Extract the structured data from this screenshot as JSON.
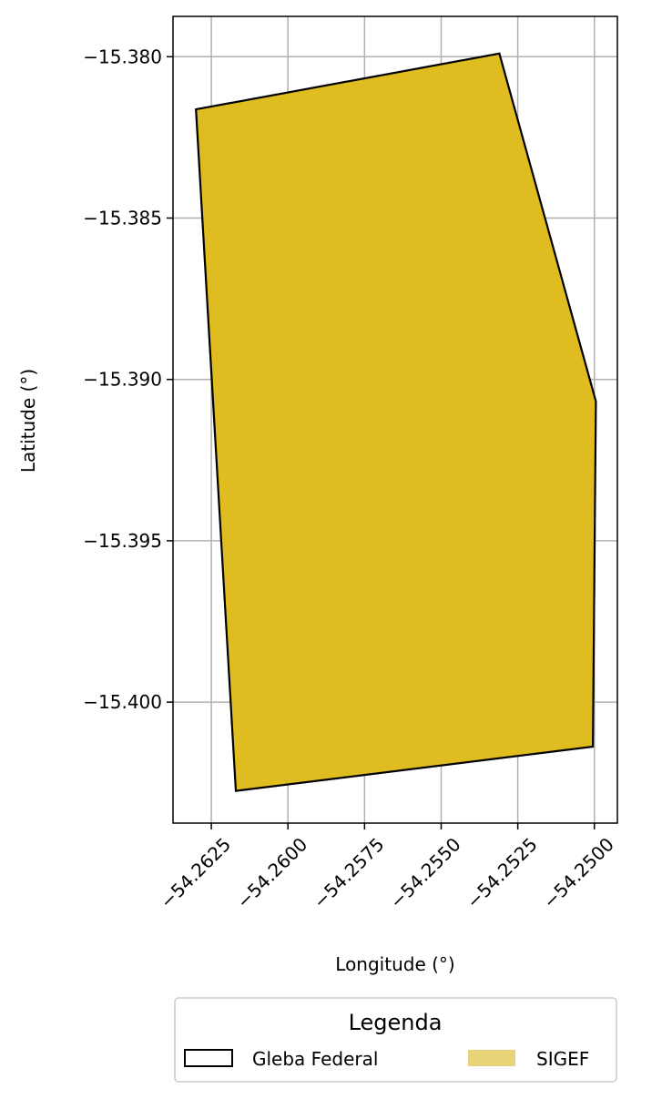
{
  "chart_data": {
    "type": "map",
    "xlabel": "Longitude (°)",
    "ylabel": "Latitude (°)",
    "xlim": [
      -54.26375,
      -54.24925
    ],
    "ylim": [
      -15.40375,
      -15.37875
    ],
    "xticks": [
      -54.2625,
      -54.26,
      -54.2575,
      -54.255,
      -54.2525,
      -54.25
    ],
    "xtick_labels": [
      "−54.2625",
      "−54.2600",
      "−54.2575",
      "−54.2550",
      "−54.2525",
      "−54.2500"
    ],
    "yticks": [
      -15.38,
      -15.385,
      -15.39,
      -15.395,
      -15.4
    ],
    "ytick_labels": [
      "−15.380",
      "−15.385",
      "−15.390",
      "−15.395",
      "−15.400"
    ],
    "grid": true,
    "layers": [
      {
        "name": "Gleba Federal",
        "style": "outline",
        "color": "#000000",
        "polygon": [
          [
            -54.263,
            -15.38163
          ],
          [
            -54.2531,
            -15.3799
          ],
          [
            -54.24995,
            -15.39068
          ],
          [
            -54.25005,
            -15.40138
          ],
          [
            -54.2617,
            -15.40275
          ]
        ]
      },
      {
        "name": "SIGEF",
        "style": "fill",
        "color": "#dfbc20",
        "legend_color": "#e8d377",
        "polygon": [
          [
            -54.263,
            -15.38163
          ],
          [
            -54.2531,
            -15.3799
          ],
          [
            -54.24995,
            -15.39068
          ],
          [
            -54.25005,
            -15.40138
          ],
          [
            -54.2617,
            -15.40275
          ]
        ]
      }
    ],
    "legend": {
      "title": "Legenda",
      "placement": "bottom-center",
      "entries": [
        "Gleba Federal",
        "SIGEF"
      ]
    }
  }
}
